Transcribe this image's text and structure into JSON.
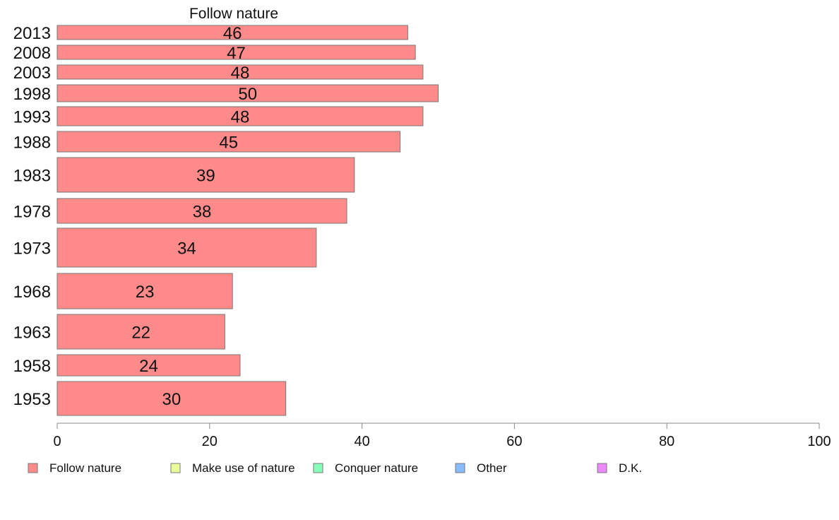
{
  "chart_data": {
    "type": "bar",
    "orientation": "horizontal",
    "title": "Follow nature",
    "xlabel": "",
    "ylabel": "",
    "xlim": [
      0,
      100
    ],
    "x_ticks": [
      0,
      20,
      40,
      60,
      80,
      100
    ],
    "categories": [
      "2013",
      "2008",
      "2003",
      "1998",
      "1993",
      "1988",
      "1983",
      "1978",
      "1973",
      "1968",
      "1963",
      "1958",
      "1953"
    ],
    "series": [
      {
        "name": "Follow nature",
        "color": "#ff8a8a",
        "values": [
          46,
          47,
          48,
          50,
          48,
          45,
          39,
          38,
          34,
          23,
          22,
          24,
          30
        ],
        "labels": [
          "46",
          "47",
          "48",
          "50",
          "48",
          "45",
          "39",
          "38",
          "34",
          "23",
          "22",
          "24",
          "30"
        ]
      }
    ],
    "legend": {
      "placement": "bottom",
      "entries": [
        {
          "label": "Follow nature",
          "color": "#ff8a8a"
        },
        {
          "label": "Make use of nature",
          "color": "#e9ff99"
        },
        {
          "label": "Conquer nature",
          "color": "#88ffbb"
        },
        {
          "label": "Other",
          "color": "#88bbff"
        },
        {
          "label": "D.K.",
          "color": "#ee88ff"
        }
      ]
    },
    "grid": false
  }
}
